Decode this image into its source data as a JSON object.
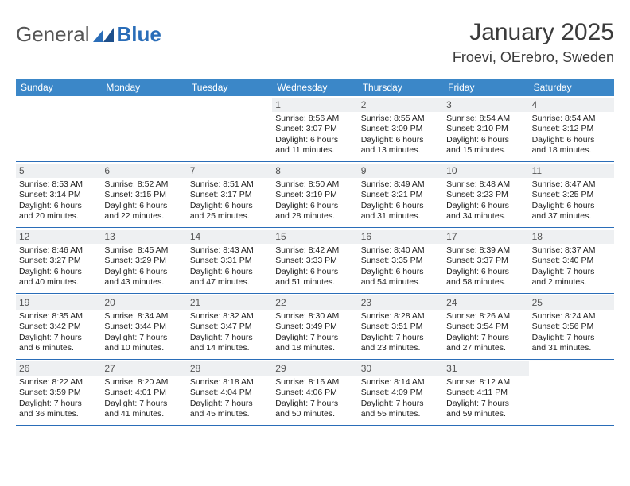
{
  "logo": {
    "word1": "General",
    "word2": "Blue"
  },
  "title": "January 2025",
  "location": "Froevi, OErebro, Sweden",
  "colors": {
    "header_bg": "#3b87c8",
    "accent": "#2a6db8",
    "daynum_bg": "#eef0f2",
    "text": "#333333"
  },
  "weekdays": [
    "Sunday",
    "Monday",
    "Tuesday",
    "Wednesday",
    "Thursday",
    "Friday",
    "Saturday"
  ],
  "weeks": [
    [
      {
        "n": "",
        "sunrise": "",
        "sunset": "",
        "daylight": ""
      },
      {
        "n": "",
        "sunrise": "",
        "sunset": "",
        "daylight": ""
      },
      {
        "n": "",
        "sunrise": "",
        "sunset": "",
        "daylight": ""
      },
      {
        "n": "1",
        "sunrise": "Sunrise: 8:56 AM",
        "sunset": "Sunset: 3:07 PM",
        "daylight": "Daylight: 6 hours\nand 11 minutes."
      },
      {
        "n": "2",
        "sunrise": "Sunrise: 8:55 AM",
        "sunset": "Sunset: 3:09 PM",
        "daylight": "Daylight: 6 hours\nand 13 minutes."
      },
      {
        "n": "3",
        "sunrise": "Sunrise: 8:54 AM",
        "sunset": "Sunset: 3:10 PM",
        "daylight": "Daylight: 6 hours\nand 15 minutes."
      },
      {
        "n": "4",
        "sunrise": "Sunrise: 8:54 AM",
        "sunset": "Sunset: 3:12 PM",
        "daylight": "Daylight: 6 hours\nand 18 minutes."
      }
    ],
    [
      {
        "n": "5",
        "sunrise": "Sunrise: 8:53 AM",
        "sunset": "Sunset: 3:14 PM",
        "daylight": "Daylight: 6 hours\nand 20 minutes."
      },
      {
        "n": "6",
        "sunrise": "Sunrise: 8:52 AM",
        "sunset": "Sunset: 3:15 PM",
        "daylight": "Daylight: 6 hours\nand 22 minutes."
      },
      {
        "n": "7",
        "sunrise": "Sunrise: 8:51 AM",
        "sunset": "Sunset: 3:17 PM",
        "daylight": "Daylight: 6 hours\nand 25 minutes."
      },
      {
        "n": "8",
        "sunrise": "Sunrise: 8:50 AM",
        "sunset": "Sunset: 3:19 PM",
        "daylight": "Daylight: 6 hours\nand 28 minutes."
      },
      {
        "n": "9",
        "sunrise": "Sunrise: 8:49 AM",
        "sunset": "Sunset: 3:21 PM",
        "daylight": "Daylight: 6 hours\nand 31 minutes."
      },
      {
        "n": "10",
        "sunrise": "Sunrise: 8:48 AM",
        "sunset": "Sunset: 3:23 PM",
        "daylight": "Daylight: 6 hours\nand 34 minutes."
      },
      {
        "n": "11",
        "sunrise": "Sunrise: 8:47 AM",
        "sunset": "Sunset: 3:25 PM",
        "daylight": "Daylight: 6 hours\nand 37 minutes."
      }
    ],
    [
      {
        "n": "12",
        "sunrise": "Sunrise: 8:46 AM",
        "sunset": "Sunset: 3:27 PM",
        "daylight": "Daylight: 6 hours\nand 40 minutes."
      },
      {
        "n": "13",
        "sunrise": "Sunrise: 8:45 AM",
        "sunset": "Sunset: 3:29 PM",
        "daylight": "Daylight: 6 hours\nand 43 minutes."
      },
      {
        "n": "14",
        "sunrise": "Sunrise: 8:43 AM",
        "sunset": "Sunset: 3:31 PM",
        "daylight": "Daylight: 6 hours\nand 47 minutes."
      },
      {
        "n": "15",
        "sunrise": "Sunrise: 8:42 AM",
        "sunset": "Sunset: 3:33 PM",
        "daylight": "Daylight: 6 hours\nand 51 minutes."
      },
      {
        "n": "16",
        "sunrise": "Sunrise: 8:40 AM",
        "sunset": "Sunset: 3:35 PM",
        "daylight": "Daylight: 6 hours\nand 54 minutes."
      },
      {
        "n": "17",
        "sunrise": "Sunrise: 8:39 AM",
        "sunset": "Sunset: 3:37 PM",
        "daylight": "Daylight: 6 hours\nand 58 minutes."
      },
      {
        "n": "18",
        "sunrise": "Sunrise: 8:37 AM",
        "sunset": "Sunset: 3:40 PM",
        "daylight": "Daylight: 7 hours\nand 2 minutes."
      }
    ],
    [
      {
        "n": "19",
        "sunrise": "Sunrise: 8:35 AM",
        "sunset": "Sunset: 3:42 PM",
        "daylight": "Daylight: 7 hours\nand 6 minutes."
      },
      {
        "n": "20",
        "sunrise": "Sunrise: 8:34 AM",
        "sunset": "Sunset: 3:44 PM",
        "daylight": "Daylight: 7 hours\nand 10 minutes."
      },
      {
        "n": "21",
        "sunrise": "Sunrise: 8:32 AM",
        "sunset": "Sunset: 3:47 PM",
        "daylight": "Daylight: 7 hours\nand 14 minutes."
      },
      {
        "n": "22",
        "sunrise": "Sunrise: 8:30 AM",
        "sunset": "Sunset: 3:49 PM",
        "daylight": "Daylight: 7 hours\nand 18 minutes."
      },
      {
        "n": "23",
        "sunrise": "Sunrise: 8:28 AM",
        "sunset": "Sunset: 3:51 PM",
        "daylight": "Daylight: 7 hours\nand 23 minutes."
      },
      {
        "n": "24",
        "sunrise": "Sunrise: 8:26 AM",
        "sunset": "Sunset: 3:54 PM",
        "daylight": "Daylight: 7 hours\nand 27 minutes."
      },
      {
        "n": "25",
        "sunrise": "Sunrise: 8:24 AM",
        "sunset": "Sunset: 3:56 PM",
        "daylight": "Daylight: 7 hours\nand 31 minutes."
      }
    ],
    [
      {
        "n": "26",
        "sunrise": "Sunrise: 8:22 AM",
        "sunset": "Sunset: 3:59 PM",
        "daylight": "Daylight: 7 hours\nand 36 minutes."
      },
      {
        "n": "27",
        "sunrise": "Sunrise: 8:20 AM",
        "sunset": "Sunset: 4:01 PM",
        "daylight": "Daylight: 7 hours\nand 41 minutes."
      },
      {
        "n": "28",
        "sunrise": "Sunrise: 8:18 AM",
        "sunset": "Sunset: 4:04 PM",
        "daylight": "Daylight: 7 hours\nand 45 minutes."
      },
      {
        "n": "29",
        "sunrise": "Sunrise: 8:16 AM",
        "sunset": "Sunset: 4:06 PM",
        "daylight": "Daylight: 7 hours\nand 50 minutes."
      },
      {
        "n": "30",
        "sunrise": "Sunrise: 8:14 AM",
        "sunset": "Sunset: 4:09 PM",
        "daylight": "Daylight: 7 hours\nand 55 minutes."
      },
      {
        "n": "31",
        "sunrise": "Sunrise: 8:12 AM",
        "sunset": "Sunset: 4:11 PM",
        "daylight": "Daylight: 7 hours\nand 59 minutes."
      },
      {
        "n": "",
        "sunrise": "",
        "sunset": "",
        "daylight": ""
      }
    ]
  ]
}
